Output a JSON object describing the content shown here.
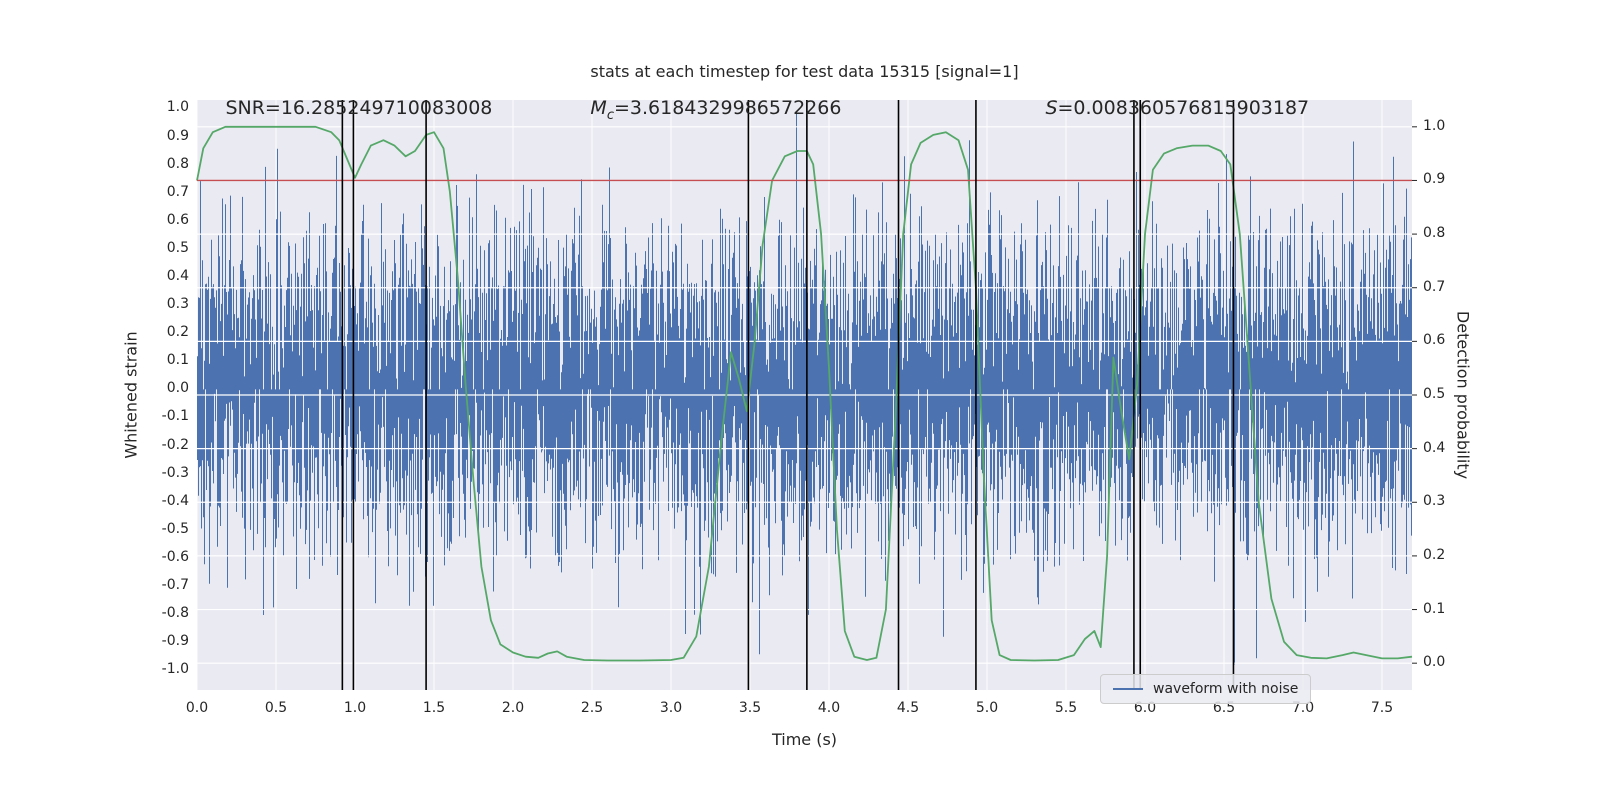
{
  "chart_data": {
    "type": "line",
    "title": "stats at each timestep for test data 15315 [signal=1]",
    "xlabel": "Time (s)",
    "ylabel_left": "Whitened strain",
    "ylabel_right": "Detection probability",
    "xlim": [
      0,
      7.69
    ],
    "ylim_left": [
      -1.07,
      1.03
    ],
    "ylim_right": [
      -0.05,
      1.05
    ],
    "xticks": [
      0.0,
      0.5,
      1.0,
      1.5,
      2.0,
      2.5,
      3.0,
      3.5,
      4.0,
      4.5,
      5.0,
      5.5,
      6.0,
      6.5,
      7.0,
      7.5
    ],
    "yticks_left": [
      1.0,
      0.9,
      0.8,
      0.7,
      0.6,
      0.5,
      0.4,
      0.3,
      0.2,
      0.1,
      0.0,
      -0.1,
      -0.2,
      -0.3,
      -0.4,
      -0.5,
      -0.6,
      -0.7,
      -0.8,
      -0.9,
      -1.0
    ],
    "yticks_right": [
      1.0,
      0.9,
      0.8,
      0.7,
      0.6,
      0.5,
      0.4,
      0.3,
      0.2,
      0.1,
      0.0
    ],
    "colors": {
      "axes_bg": "#eaeaf2",
      "grid": "#ffffff",
      "noise": "#4c72b0",
      "probability": "#55a868",
      "threshold": "#c44e52",
      "vline": "#000000",
      "text": "#262626"
    },
    "threshold_probability": 0.9,
    "vlines_time": [
      0.92,
      0.99,
      1.45,
      3.49,
      3.86,
      4.44,
      4.93,
      5.93,
      5.97,
      6.56
    ],
    "detection_probability_points": [
      [
        0.0,
        0.9
      ],
      [
        0.04,
        0.96
      ],
      [
        0.1,
        0.99
      ],
      [
        0.18,
        1.0
      ],
      [
        0.3,
        1.0
      ],
      [
        0.45,
        1.0
      ],
      [
        0.6,
        1.0
      ],
      [
        0.75,
        1.0
      ],
      [
        0.85,
        0.99
      ],
      [
        0.9,
        0.975
      ],
      [
        0.95,
        0.94
      ],
      [
        1.0,
        0.905
      ],
      [
        1.04,
        0.93
      ],
      [
        1.1,
        0.965
      ],
      [
        1.18,
        0.975
      ],
      [
        1.25,
        0.965
      ],
      [
        1.32,
        0.945
      ],
      [
        1.38,
        0.955
      ],
      [
        1.45,
        0.985
      ],
      [
        1.5,
        0.99
      ],
      [
        1.56,
        0.96
      ],
      [
        1.6,
        0.88
      ],
      [
        1.65,
        0.72
      ],
      [
        1.7,
        0.52
      ],
      [
        1.75,
        0.34
      ],
      [
        1.8,
        0.18
      ],
      [
        1.86,
        0.08
      ],
      [
        1.92,
        0.035
      ],
      [
        2.0,
        0.02
      ],
      [
        2.08,
        0.012
      ],
      [
        2.16,
        0.01
      ],
      [
        2.22,
        0.018
      ],
      [
        2.28,
        0.022
      ],
      [
        2.34,
        0.012
      ],
      [
        2.45,
        0.006
      ],
      [
        2.6,
        0.005
      ],
      [
        2.8,
        0.005
      ],
      [
        3.0,
        0.006
      ],
      [
        3.08,
        0.01
      ],
      [
        3.16,
        0.05
      ],
      [
        3.24,
        0.18
      ],
      [
        3.32,
        0.42
      ],
      [
        3.38,
        0.58
      ],
      [
        3.43,
        0.53
      ],
      [
        3.48,
        0.47
      ],
      [
        3.53,
        0.6
      ],
      [
        3.58,
        0.78
      ],
      [
        3.64,
        0.9
      ],
      [
        3.72,
        0.945
      ],
      [
        3.8,
        0.955
      ],
      [
        3.86,
        0.955
      ],
      [
        3.9,
        0.93
      ],
      [
        3.95,
        0.8
      ],
      [
        4.0,
        0.55
      ],
      [
        4.05,
        0.25
      ],
      [
        4.1,
        0.06
      ],
      [
        4.16,
        0.012
      ],
      [
        4.24,
        0.006
      ],
      [
        4.3,
        0.01
      ],
      [
        4.36,
        0.1
      ],
      [
        4.42,
        0.45
      ],
      [
        4.47,
        0.8
      ],
      [
        4.52,
        0.93
      ],
      [
        4.58,
        0.97
      ],
      [
        4.66,
        0.985
      ],
      [
        4.74,
        0.99
      ],
      [
        4.82,
        0.975
      ],
      [
        4.88,
        0.92
      ],
      [
        4.93,
        0.7
      ],
      [
        4.98,
        0.35
      ],
      [
        5.03,
        0.08
      ],
      [
        5.08,
        0.015
      ],
      [
        5.15,
        0.006
      ],
      [
        5.3,
        0.005
      ],
      [
        5.45,
        0.006
      ],
      [
        5.55,
        0.015
      ],
      [
        5.62,
        0.045
      ],
      [
        5.68,
        0.06
      ],
      [
        5.72,
        0.03
      ],
      [
        5.76,
        0.2
      ],
      [
        5.8,
        0.57
      ],
      [
        5.85,
        0.47
      ],
      [
        5.9,
        0.38
      ],
      [
        5.95,
        0.52
      ],
      [
        6.0,
        0.8
      ],
      [
        6.05,
        0.92
      ],
      [
        6.12,
        0.95
      ],
      [
        6.2,
        0.96
      ],
      [
        6.3,
        0.965
      ],
      [
        6.4,
        0.965
      ],
      [
        6.48,
        0.955
      ],
      [
        6.54,
        0.93
      ],
      [
        6.6,
        0.8
      ],
      [
        6.66,
        0.55
      ],
      [
        6.72,
        0.3
      ],
      [
        6.8,
        0.12
      ],
      [
        6.88,
        0.04
      ],
      [
        6.96,
        0.015
      ],
      [
        7.05,
        0.01
      ],
      [
        7.15,
        0.009
      ],
      [
        7.25,
        0.015
      ],
      [
        7.32,
        0.02
      ],
      [
        7.4,
        0.015
      ],
      [
        7.5,
        0.009
      ],
      [
        7.6,
        0.009
      ],
      [
        7.69,
        0.012
      ]
    ],
    "noise_waveform": {
      "description": "dense whitened gaussian noise strain, regenerated per pixel column from seed",
      "seed": 15315,
      "per_column_samples": 5,
      "std": 0.28,
      "clip": 1.0
    },
    "annotations": [
      {
        "pre": "SNR",
        "sub": "",
        "value": "=16.285249710083008",
        "x_time": 0.18
      },
      {
        "pre": "M",
        "sub": "c",
        "value": "=3.6184329986572266",
        "x_time": 2.49
      },
      {
        "pre": "S",
        "sub": "",
        "value": "=0.008360576815903187",
        "x_time": 5.37
      }
    ],
    "legend": {
      "label": "waveform with noise"
    }
  }
}
